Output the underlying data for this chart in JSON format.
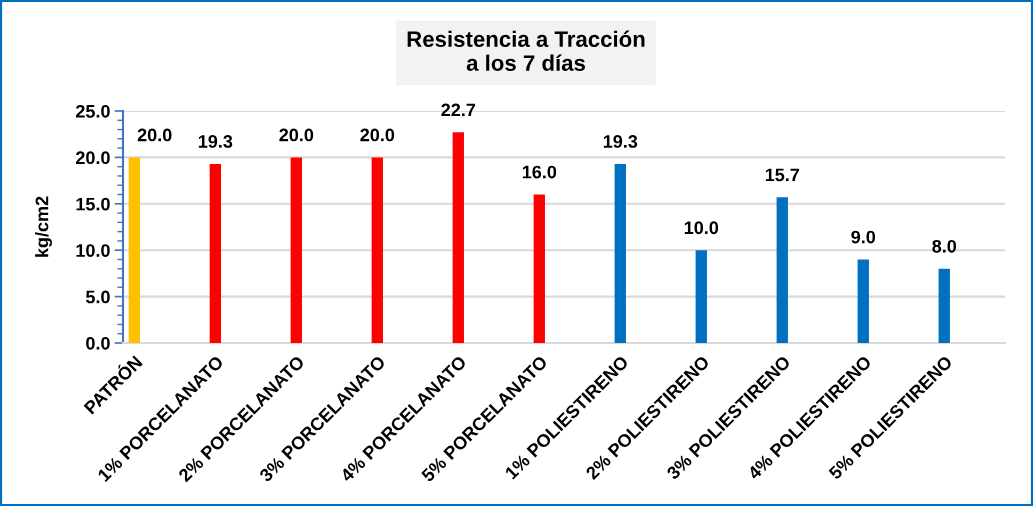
{
  "chart_data": {
    "type": "bar",
    "title": "Resistencia a Tracción\na los 7 días",
    "ylabel": "kg/cm2",
    "categories": [
      "PATRÓN",
      "1% PORCELANATO",
      "2% PORCELANATO",
      "3% PORCELANATO",
      "4% PORCELANATO",
      "5% PORCELANATO",
      "1% POLIESTIRENO",
      "2% POLIESTIRENO",
      "3% POLIESTIRENO",
      "4% POLIESTIRENO",
      "5% POLIESTIRENO"
    ],
    "values": [
      20.0,
      19.3,
      20.0,
      20.0,
      22.7,
      16.0,
      19.3,
      10.0,
      15.7,
      9.0,
      8.0
    ],
    "colors": [
      "#ffc000",
      "#ff0000",
      "#ff0000",
      "#ff0000",
      "#ff0000",
      "#ff0000",
      "#0070c0",
      "#0070c0",
      "#0070c0",
      "#0070c0",
      "#0070c0"
    ],
    "value_labels": [
      "20.0",
      "19.3",
      "20.0",
      "20.0",
      "22.7",
      "16.0",
      "19.3",
      "10.0",
      "15.7",
      "9.0",
      "8.0"
    ],
    "ylim": [
      0,
      25
    ],
    "yticks": [
      {
        "value": 0,
        "label": "0.0"
      },
      {
        "value": 5,
        "label": "5.0"
      },
      {
        "value": 10,
        "label": "10.0"
      },
      {
        "value": 15,
        "label": "15.0"
      },
      {
        "value": 20,
        "label": "20.0"
      },
      {
        "value": 25,
        "label": "25.0"
      }
    ],
    "grid": "y"
  }
}
